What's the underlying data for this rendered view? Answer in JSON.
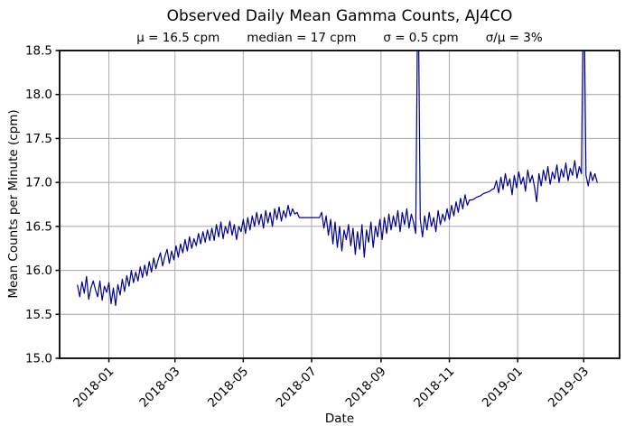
{
  "chart_data": {
    "type": "line",
    "title": "Observed Daily Mean Gamma Counts, AJ4CO",
    "stats": {
      "mu": "μ = 16.5 cpm",
      "median": "median = 17 cpm",
      "sigma": "σ = 0.5 cpm",
      "sigma_over_mu": "σ/μ = 3%"
    },
    "xlabel": "Date",
    "ylabel": "Mean Counts per Minute (cpm)",
    "ylim": [
      15.0,
      18.5
    ],
    "y_ticks": [
      15.0,
      15.5,
      16.0,
      16.5,
      17.0,
      17.5,
      18.0,
      18.5
    ],
    "x_axis": {
      "range_days": [
        0,
        500
      ],
      "ticks": [
        {
          "label": "2018-01",
          "day": 44
        },
        {
          "label": "2018-03",
          "day": 103
        },
        {
          "label": "2018-05",
          "day": 164
        },
        {
          "label": "2018-07",
          "day": 225
        },
        {
          "label": "2018-09",
          "day": 287
        },
        {
          "label": "2018-11",
          "day": 348
        },
        {
          "label": "2019-01",
          "day": 409
        },
        {
          "label": "2019-03",
          "day": 468
        }
      ]
    },
    "grid": true,
    "legend": false,
    "colors": {
      "line": "#00008b",
      "grid": "#b0b0b0",
      "spine": "#000000",
      "text": "#000000"
    },
    "series": [
      {
        "name": "daily-mean-gamma-counts",
        "start_day": 16,
        "step_days": 2,
        "values": [
          15.83,
          15.7,
          15.87,
          15.74,
          15.93,
          15.67,
          15.8,
          15.88,
          15.78,
          15.7,
          15.88,
          15.66,
          15.82,
          15.75,
          15.86,
          15.62,
          15.8,
          15.6,
          15.84,
          15.72,
          15.9,
          15.76,
          15.94,
          15.82,
          16.0,
          15.86,
          15.98,
          15.88,
          16.04,
          15.92,
          16.06,
          15.94,
          16.1,
          15.98,
          16.14,
          16.02,
          16.12,
          16.2,
          16.05,
          16.16,
          16.24,
          16.08,
          16.22,
          16.12,
          16.28,
          16.15,
          16.3,
          16.2,
          16.35,
          16.22,
          16.38,
          16.25,
          16.36,
          16.28,
          16.42,
          16.3,
          16.44,
          16.32,
          16.46,
          16.34,
          16.48,
          16.34,
          16.52,
          16.38,
          16.55,
          16.36,
          16.5,
          16.42,
          16.56,
          16.4,
          16.52,
          16.35,
          16.5,
          16.44,
          16.58,
          16.42,
          16.6,
          16.46,
          16.62,
          16.5,
          16.66,
          16.52,
          16.64,
          16.48,
          16.68,
          16.54,
          16.66,
          16.5,
          16.7,
          16.58,
          16.72,
          16.56,
          16.68,
          16.6,
          16.74,
          16.62,
          16.7,
          16.64,
          16.66,
          16.6,
          16.6,
          16.6,
          16.6,
          16.6,
          16.6,
          16.6,
          16.6,
          16.6,
          16.6,
          16.66,
          16.48,
          16.62,
          16.4,
          16.58,
          16.3,
          16.55,
          16.26,
          16.5,
          16.22,
          16.46,
          16.35,
          16.52,
          16.28,
          16.48,
          16.18,
          16.44,
          16.24,
          16.52,
          16.15,
          16.46,
          16.32,
          16.55,
          16.26,
          16.5,
          16.38,
          16.58,
          16.35,
          16.6,
          16.42,
          16.64,
          16.46,
          16.62,
          16.5,
          16.68,
          16.44,
          16.66,
          16.52,
          16.7,
          16.48,
          16.64,
          16.55,
          16.42,
          19.5,
          16.58,
          16.38,
          16.62,
          16.46,
          16.66,
          16.5,
          16.6,
          16.44,
          16.68,
          16.52,
          16.64,
          16.56,
          16.7,
          16.58,
          16.74,
          16.62,
          16.78,
          16.66,
          16.82,
          16.7,
          16.86,
          16.74,
          16.8,
          16.8,
          16.81,
          16.83,
          16.84,
          16.85,
          16.87,
          16.88,
          16.89,
          16.9,
          16.92,
          16.93,
          17.02,
          16.88,
          17.06,
          16.92,
          17.1,
          16.96,
          17.04,
          16.86,
          17.08,
          16.94,
          17.12,
          16.98,
          17.06,
          16.9,
          17.14,
          17.0,
          17.08,
          16.95,
          16.78,
          17.1,
          16.96,
          17.14,
          17.02,
          17.18,
          16.98,
          17.12,
          17.04,
          17.2,
          17.0,
          17.15,
          17.06,
          17.22,
          17.02,
          17.16,
          17.08,
          17.25,
          17.05,
          17.18,
          17.1,
          19.5,
          17.08,
          16.96,
          17.12,
          17.02,
          17.1,
          17.0
        ]
      }
    ]
  }
}
